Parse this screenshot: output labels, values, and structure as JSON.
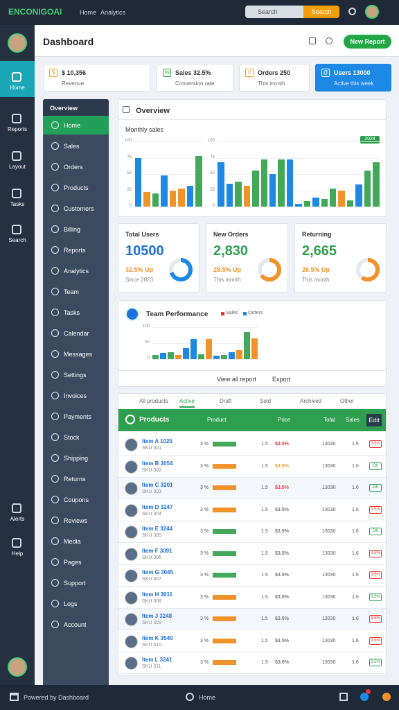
{
  "topbar": {
    "logo": "ENCONIGOAI",
    "nav": [
      "Home",
      "Analytics"
    ],
    "search": "Search",
    "search_button": "Search"
  },
  "rail": {
    "items": [
      "Home",
      "Reports",
      "Layout",
      "Tasks",
      "Search",
      "Alerts",
      "Help"
    ],
    "active": 0
  },
  "header": {
    "title": "Dashboard",
    "button": "New Report"
  },
  "kpis": [
    {
      "value": "$ 10,356",
      "label": "Revenue",
      "icon": "$",
      "color": "#f0a020"
    },
    {
      "value": "Sales 32.5%",
      "label": "Conversion rate",
      "icon": "%",
      "color": "#2ea44f"
    },
    {
      "value": "Orders 250",
      "label": "This month",
      "icon": "#",
      "color": "#f0a020"
    },
    {
      "value": "Users 13000",
      "label": "Active this week",
      "icon": "@",
      "color": "#ffffff"
    }
  ],
  "menu": {
    "title": "Overview",
    "active": 0,
    "items": [
      "Home",
      "Sales",
      "Orders",
      "Products",
      "Customers",
      "Billing",
      "Reports",
      "Analytics",
      "Team",
      "Tasks",
      "Calendar",
      "Messages",
      "Settings",
      "Invoices",
      "Payments",
      "Stock",
      "Shipping",
      "Returns",
      "Coupons",
      "Reviews",
      "Media",
      "Pages",
      "Support",
      "Logs",
      "Account"
    ]
  },
  "chart_data": [
    {
      "type": "bar",
      "title": "Overview",
      "subtitle": "Monthly sales",
      "badge": "2024",
      "values": [
        75,
        22,
        20,
        48,
        25,
        28,
        32,
        78
      ],
      "colors": [
        "#1e88e5",
        "#f0932b",
        "#43a85a",
        "#1e88e5",
        "#f0932b",
        "#f0932b",
        "#1e88e5",
        "#43a85a"
      ],
      "ylim": [
        0,
        100
      ],
      "yticks": [
        0,
        25,
        50,
        75,
        100
      ]
    },
    {
      "type": "bar",
      "values": [
        68,
        35,
        38,
        32,
        55,
        72,
        50,
        72,
        72,
        4,
        8,
        14,
        12,
        28,
        24,
        10,
        34,
        55,
        68
      ],
      "colors": [
        "#1e88e5",
        "#1e88e5",
        "#43a85a",
        "#f0932b",
        "#43a85a",
        "#43a85a",
        "#1e88e5",
        "#43a85a",
        "#1e88e5",
        "#1e88e5",
        "#43a85a",
        "#1e88e5",
        "#43a85a",
        "#43a85a",
        "#f0932b",
        "#43a85a",
        "#1e88e5",
        "#43a85a",
        "#43a85a"
      ],
      "ylim": [
        0,
        100
      ],
      "yticks": [
        0,
        25,
        50,
        75,
        100
      ]
    },
    {
      "type": "bar",
      "title": "Team Performance",
      "legend": [
        "Sales",
        "Orders"
      ],
      "values": [
        12,
        20,
        22,
        12,
        35,
        62,
        15,
        62,
        10,
        12,
        22,
        28,
        85,
        65
      ],
      "colors": [
        "#43a85a",
        "#1e88e5",
        "#43a85a",
        "#f0932b",
        "#1e88e5",
        "#1e88e5",
        "#43a85a",
        "#f0932b",
        "#1e88e5",
        "#43a85a",
        "#1e88e5",
        "#f0932b",
        "#43a85a",
        "#f0932b"
      ],
      "ylim": [
        0,
        100
      ],
      "yticks": [
        0,
        50,
        100
      ],
      "footer": [
        "View all report",
        "Export"
      ]
    }
  ],
  "stats": [
    {
      "title": "Total Users",
      "value": "10500",
      "change": "32.5% Up",
      "sub": "Since 2023",
      "percent": 70,
      "value_color": "#1e6fd9",
      "change_color": "#f0932b",
      "ring_color": "#1e88e5"
    },
    {
      "title": "New Orders",
      "value": "2,830",
      "change": "28.5% Up",
      "sub": "This month",
      "percent": 65,
      "value_color": "#2e9f4f",
      "change_color": "#f0932b",
      "ring_color": "#f0932b"
    },
    {
      "title": "Returning",
      "value": "2,665",
      "change": "26.5% Up",
      "sub": "This month",
      "percent": 60,
      "value_color": "#2e9f4f",
      "change_color": "#f0932b",
      "ring_color": "#f0932b"
    }
  ],
  "table": {
    "tabs": [
      "All products",
      "Active",
      "Draft",
      "Sold",
      "Archived",
      "Other"
    ],
    "title": "Products",
    "columns": [
      "Product",
      "Price",
      "Total",
      "Sales"
    ],
    "button": "Edit",
    "rows": [
      {
        "name": "Item A 1020",
        "code": "SKU 301",
        "rate": "3 %",
        "qty": "1.5",
        "change": "$3.5%",
        "amount": "13030",
        "count": "1.6",
        "badge": "3.5%",
        "change_color": "#e53935",
        "badge_color": "#e53935"
      },
      {
        "name": "Item B 3054",
        "code": "SKU 302",
        "rate": "3 %",
        "qty": "1.5",
        "change": "$3.5%",
        "amount": "13030",
        "count": "1.6",
        "badge": "OK",
        "change_color": "#f0a020",
        "badge_color": "#2e9f4f"
      },
      {
        "name": "Item C 3201",
        "code": "SKU 303",
        "rate": "3 %",
        "qty": "1.5",
        "change": "$3.5%",
        "amount": "13030",
        "count": "1.6",
        "badge": "OK",
        "change_color": "#e53935",
        "badge_color": "#2e9f4f"
      },
      {
        "name": "Item D 3247",
        "code": "SKU 304",
        "rate": "3 %",
        "qty": "1.5",
        "change": "$3.5%",
        "amount": "13030",
        "count": "1.6",
        "badge": "3.5%",
        "change_color": "#777777",
        "badge_color": "#e53935"
      },
      {
        "name": "Item E 3244",
        "code": "SKU 305",
        "rate": "3 %",
        "qty": "1.5",
        "change": "$3.5%",
        "amount": "13030",
        "count": "1.6",
        "badge": "OK",
        "change_color": "#777777",
        "badge_color": "#2e9f4f"
      },
      {
        "name": "Item F 3091",
        "code": "SKU 306",
        "rate": "3 %",
        "qty": "1.5",
        "change": "$3.5%",
        "amount": "13030",
        "count": "1.6",
        "badge": "3.5%",
        "change_color": "#777777",
        "badge_color": "#e53935"
      },
      {
        "name": "Item G 3045",
        "code": "SKU 307",
        "rate": "3 %",
        "qty": "1.5",
        "change": "$3.5%",
        "amount": "13030",
        "count": "1.6",
        "badge": "3.5%",
        "change_color": "#777777",
        "badge_color": "#e53935"
      },
      {
        "name": "Item H 3011",
        "code": "SKU 308",
        "rate": "3 %",
        "qty": "1.5",
        "change": "$3.5%",
        "amount": "13030",
        "count": "1.6",
        "badge": "3.5%",
        "change_color": "#777777",
        "badge_color": "#2e9f4f"
      },
      {
        "name": "Item J 3248",
        "code": "SKU 309",
        "rate": "3 %",
        "qty": "1.5",
        "change": "$3.5%",
        "amount": "13030",
        "count": "1.6",
        "badge": "3.5%",
        "change_color": "#777777",
        "badge_color": "#e53935"
      },
      {
        "name": "Item K 3540",
        "code": "SKU 310",
        "rate": "3 %",
        "qty": "1.5",
        "change": "$3.5%",
        "amount": "13030",
        "count": "1.6",
        "badge": "3.5%",
        "change_color": "#777777",
        "badge_color": "#e53935"
      },
      {
        "name": "Item L 3241",
        "code": "SKU 311",
        "rate": "3 %",
        "qty": "1.5",
        "change": "$3.5%",
        "amount": "13030",
        "count": "1.6",
        "badge": "3.5%",
        "change_color": "#777777",
        "badge_color": "#2e9f4f"
      }
    ]
  },
  "footer": {
    "text": "Powered by Dashboard",
    "center": "Home"
  }
}
